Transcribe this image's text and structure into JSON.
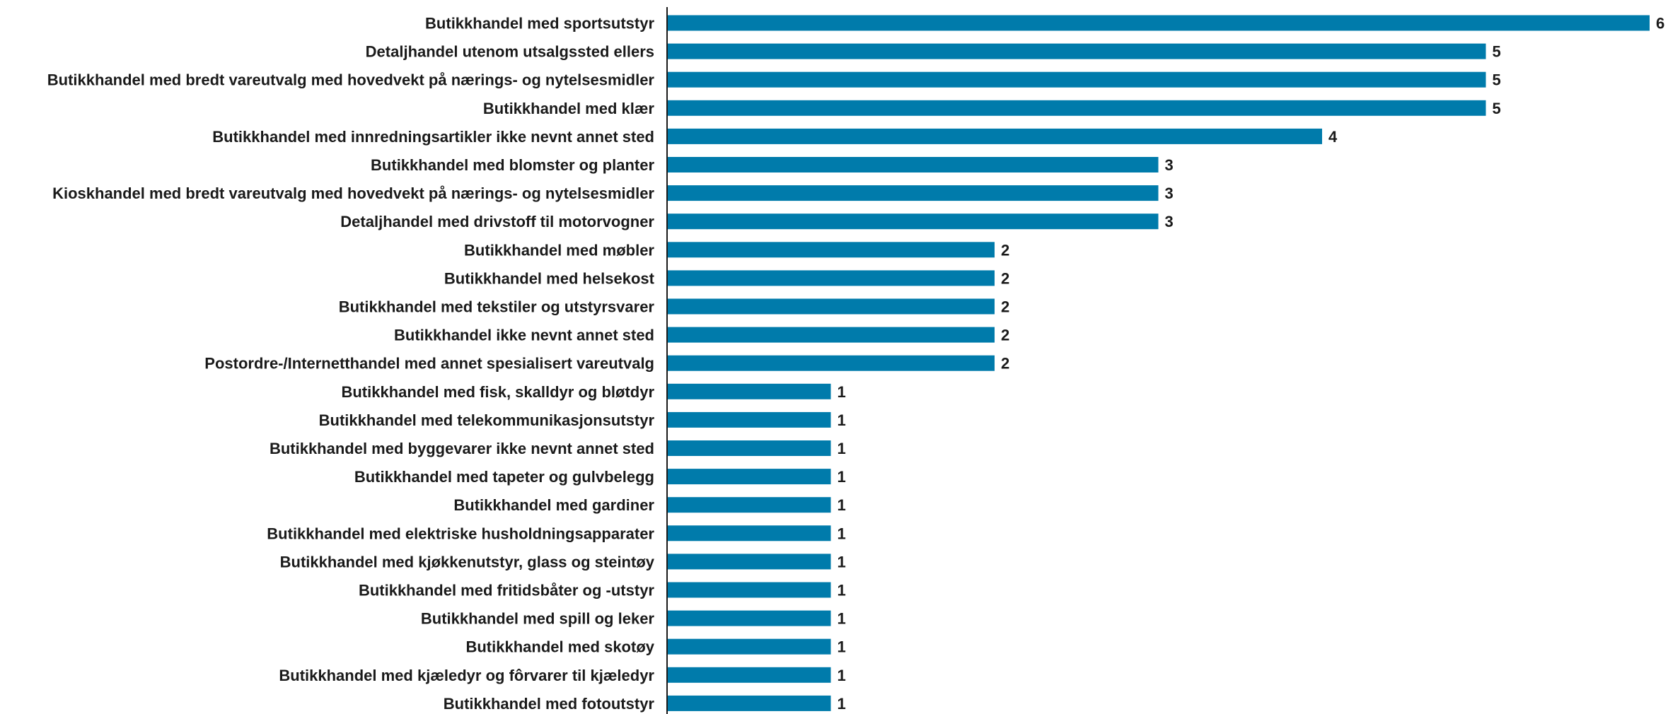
{
  "chart_data": {
    "type": "bar",
    "orientation": "horizontal",
    "categories": [
      "Butikkhandel med sportsutstyr",
      "Detaljhandel utenom utsalgssted ellers",
      "Butikkhandel med bredt vareutvalg med hovedvekt på nærings- og nytelsesmidler",
      "Butikkhandel med klær",
      "Butikkhandel med innredningsartikler ikke nevnt annet sted",
      "Butikkhandel med blomster og planter",
      "Kioskhandel med bredt vareutvalg med hovedvekt på nærings- og nytelsesmidler",
      "Detaljhandel med drivstoff til motorvogner",
      "Butikkhandel med møbler",
      "Butikkhandel med helsekost",
      "Butikkhandel med tekstiler og utstyrsvarer",
      "Butikkhandel ikke nevnt annet sted",
      "Postordre-/Internetthandel med annet spesialisert vareutvalg",
      "Butikkhandel med fisk, skalldyr og bløtdyr",
      "Butikkhandel med telekommunikasjonsutstyr",
      "Butikkhandel med byggevarer ikke nevnt annet sted",
      "Butikkhandel med tapeter og gulvbelegg",
      "Butikkhandel med gardiner",
      "Butikkhandel med elektriske husholdningsapparater",
      "Butikkhandel med kjøkkenutstyr, glass og steintøy",
      "Butikkhandel med fritidsbåter og -utstyr",
      "Butikkhandel med spill og leker",
      "Butikkhandel med skotøy",
      "Butikkhandel med kjæledyr og fôrvarer til kjæledyr",
      "Butikkhandel med fotoutstyr"
    ],
    "values": [
      6,
      5,
      5,
      5,
      4,
      3,
      3,
      3,
      2,
      2,
      2,
      2,
      2,
      1,
      1,
      1,
      1,
      1,
      1,
      1,
      1,
      1,
      1,
      1,
      1
    ],
    "xlim": [
      0,
      6
    ],
    "grid": false,
    "legend": "none",
    "data_labels": true,
    "bar_color": "#007bab",
    "axis_color": "#1a1a1a",
    "text_color": "#1a1a1a"
  }
}
